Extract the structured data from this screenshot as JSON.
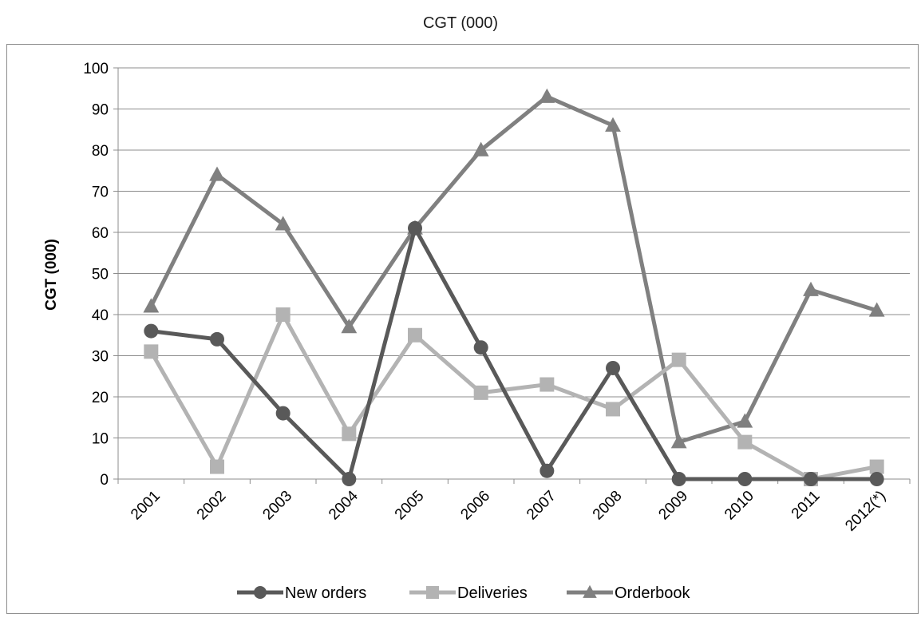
{
  "title": "CGT (000)",
  "chart_data": {
    "type": "line",
    "categories": [
      "2001",
      "2002",
      "2003",
      "2004",
      "2005",
      "2006",
      "2007",
      "2008",
      "2009",
      "2010",
      "2011",
      "2012(*)"
    ],
    "ylabel": "CGT (000)",
    "xlabel": "",
    "ylim": [
      0,
      100
    ],
    "yticks": [
      0,
      10,
      20,
      30,
      40,
      50,
      60,
      70,
      80,
      90,
      100
    ],
    "grid": true,
    "legend_position": "bottom",
    "series": [
      {
        "name": "New orders",
        "marker": "circle",
        "color": "#595959",
        "values": [
          36,
          34,
          16,
          0,
          61,
          32,
          2,
          27,
          0,
          0,
          0,
          0
        ]
      },
      {
        "name": "Deliveries",
        "marker": "square",
        "color": "#b3b3b3",
        "values": [
          31,
          3,
          40,
          11,
          35,
          21,
          23,
          17,
          29,
          9,
          0,
          3
        ]
      },
      {
        "name": "Orderbook",
        "marker": "triangle",
        "color": "#808080",
        "values": [
          42,
          74,
          62,
          37,
          61,
          80,
          93,
          86,
          9,
          14,
          46,
          41
        ]
      }
    ]
  }
}
